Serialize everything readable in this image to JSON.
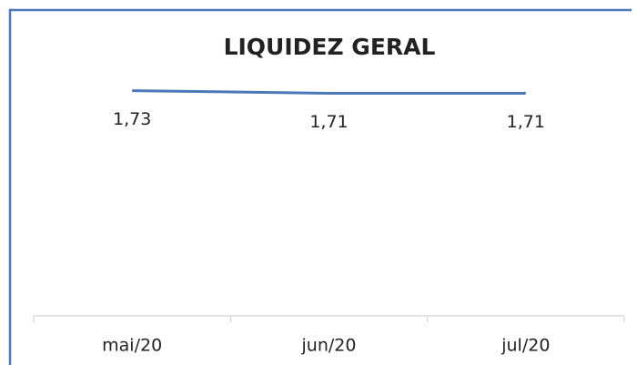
{
  "chart_data": {
    "type": "line",
    "title": "LIQUIDEZ GERAL",
    "categories": [
      "mai/20",
      "jun/20",
      "jul/20"
    ],
    "series": [
      {
        "color": "#4a78b8",
        "values": [
          1.73,
          1.71,
          1.71
        ],
        "value_labels": [
          "1,73",
          "1,71",
          "1,71"
        ]
      }
    ],
    "ylim": [
      0,
      2
    ]
  }
}
